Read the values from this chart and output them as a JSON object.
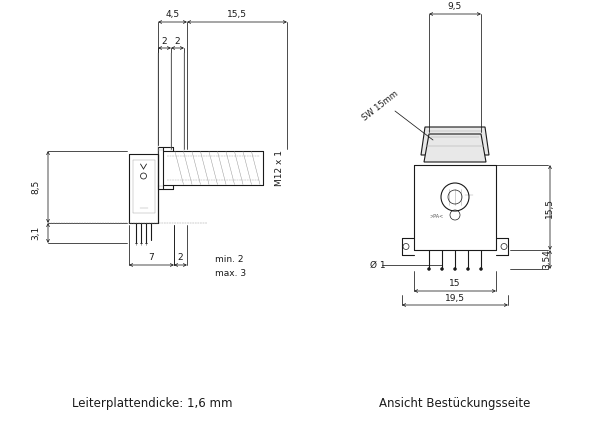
{
  "bg_color": "#ffffff",
  "lc": "#1a1a1a",
  "gc": "#888888",
  "fc_light": "#e8e8e8",
  "fc_mid": "#d0d0d0",
  "fc_dark": "#b0b0b0",
  "title_left": "Leiterplattendicke: 1,6 mm",
  "title_right": "Ansicht Bestückungsseite",
  "label_m12": "M12 x 1",
  "label_sw": "SW 15mm",
  "d45": "4,5",
  "d155": "15,5",
  "d2a": "2",
  "d2b": "2",
  "d85": "8,5",
  "d31": "3,1",
  "d7": "7",
  "d2c": "2",
  "dmin2": "min. 2",
  "dmax3": "max. 3",
  "d95": "9,5",
  "d155r": "15,5",
  "d354": "3,54",
  "do1": "Ø 1",
  "d15": "15",
  "d195": "19,5"
}
